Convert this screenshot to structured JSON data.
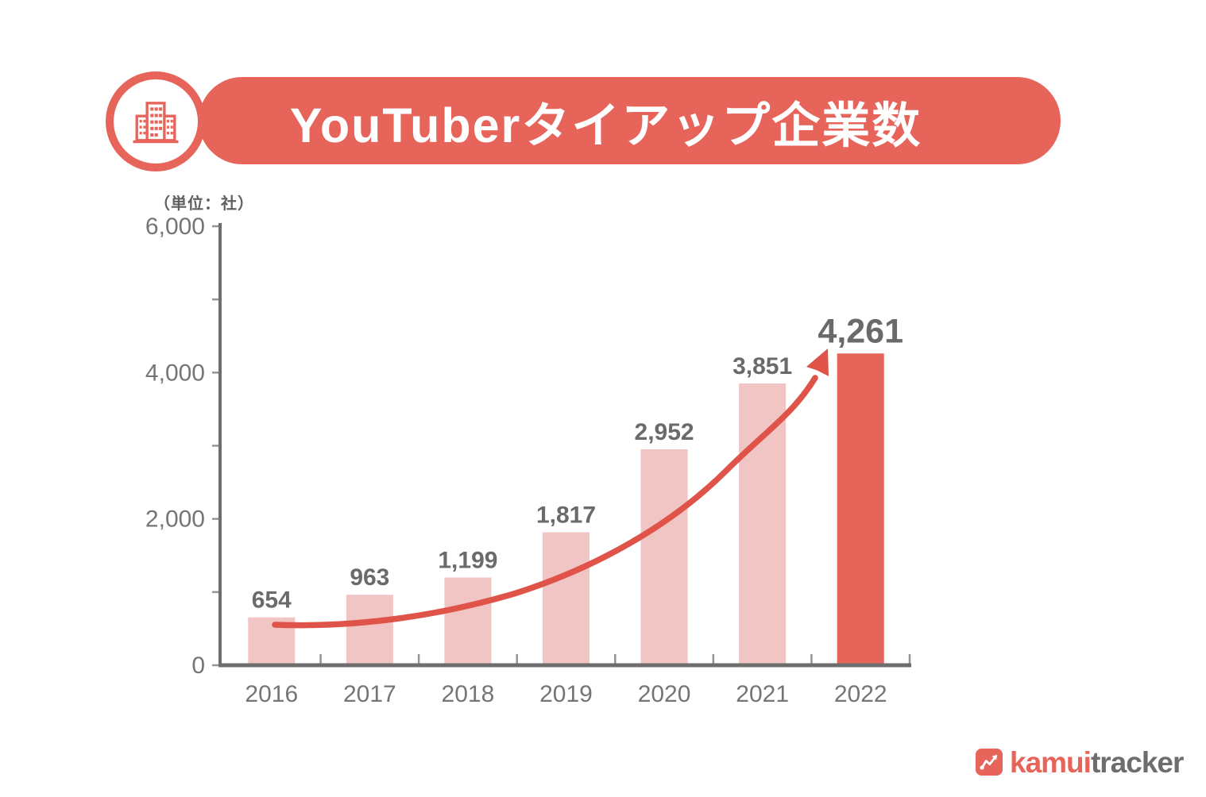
{
  "header": {
    "title": "YouTuberタイアップ企業数"
  },
  "chart_data": {
    "type": "bar",
    "title": "YouTuberタイアップ企業数",
    "unit_label": "（単位：社）",
    "categories": [
      "2016",
      "2017",
      "2018",
      "2019",
      "2020",
      "2021",
      "2022"
    ],
    "values": [
      654,
      963,
      1199,
      1817,
      2952,
      3851,
      4261
    ],
    "value_labels": [
      "654",
      "963",
      "1,199",
      "1,817",
      "2,952",
      "3,851",
      "4,261"
    ],
    "highlight_index": 6,
    "ylim": [
      0,
      6000
    ],
    "ytick_values": [
      0,
      2000,
      4000,
      6000
    ],
    "ytick_labels": [
      "0",
      "2,000",
      "4,000",
      "6,000"
    ],
    "minor_ytick_values": [
      1000,
      3000,
      5000
    ],
    "grid": false,
    "legend": null,
    "xlabel": "",
    "ylabel": "",
    "bar_color": "#F0C5C3",
    "highlight_bar_color": "#E7645B",
    "trend_arrow_color": "#DF5349",
    "axis_color": "#6e6e6e",
    "tick_color": "#949494",
    "value_label_color": "#6a6a6a",
    "axis_label_color": "#757575"
  },
  "footer": {
    "logo_kamui": "kamui",
    "logo_tracker": "tracker"
  },
  "colors": {
    "accent": "#E7645B",
    "light_bar": "#F0C5C3",
    "arrow": "#DF5349",
    "background": "#ffffff"
  }
}
